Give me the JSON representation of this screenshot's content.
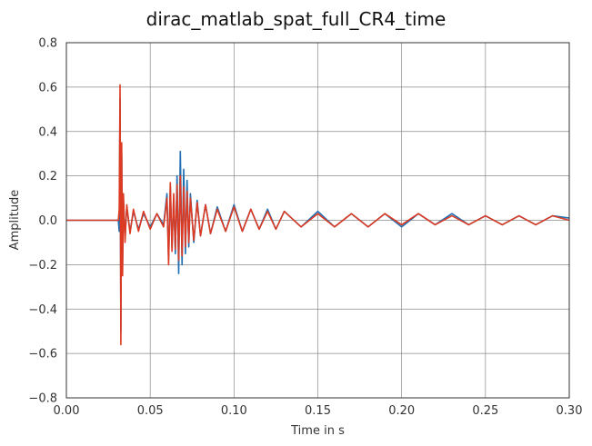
{
  "chart_data": {
    "type": "line",
    "title": "dirac_matlab_spat_full_CR4_time",
    "xlabel": "Time in s",
    "ylabel": "Amplitude",
    "xlim": [
      0.0,
      0.3
    ],
    "ylim": [
      -0.8,
      0.8
    ],
    "grid": true,
    "x_ticks": [
      0.0,
      0.05,
      0.1,
      0.15,
      0.2,
      0.25,
      0.3
    ],
    "x_tick_labels": [
      "0.00",
      "0.05",
      "0.10",
      "0.15",
      "0.20",
      "0.25",
      "0.30"
    ],
    "y_ticks": [
      -0.8,
      -0.6,
      -0.4,
      -0.2,
      0.0,
      0.2,
      0.4,
      0.6,
      0.8
    ],
    "y_tick_labels": [
      "−0.8",
      "−0.6",
      "−0.4",
      "−0.2",
      "0.0",
      "0.2",
      "0.4",
      "0.6",
      "0.8"
    ],
    "series": [
      {
        "color": "#1f6fb4",
        "x": [
          0.0,
          0.031,
          0.0315,
          0.032,
          0.0325,
          0.033,
          0.0335,
          0.034,
          0.035,
          0.036,
          0.038,
          0.04,
          0.043,
          0.046,
          0.05,
          0.054,
          0.058,
          0.06,
          0.061,
          0.062,
          0.063,
          0.064,
          0.065,
          0.066,
          0.067,
          0.068,
          0.069,
          0.07,
          0.071,
          0.072,
          0.073,
          0.074,
          0.076,
          0.078,
          0.08,
          0.083,
          0.086,
          0.09,
          0.095,
          0.1,
          0.105,
          0.11,
          0.115,
          0.12,
          0.125,
          0.13,
          0.14,
          0.15,
          0.16,
          0.17,
          0.18,
          0.19,
          0.2,
          0.21,
          0.22,
          0.23,
          0.24,
          0.25,
          0.26,
          0.27,
          0.28,
          0.29,
          0.3
        ],
        "y": [
          0.0,
          0.0,
          -0.05,
          0.55,
          -0.5,
          0.3,
          -0.2,
          0.1,
          -0.08,
          0.06,
          -0.05,
          0.04,
          -0.04,
          0.03,
          -0.03,
          0.03,
          -0.02,
          0.12,
          -0.18,
          0.15,
          -0.12,
          0.1,
          -0.15,
          0.2,
          -0.24,
          0.31,
          -0.2,
          0.23,
          -0.15,
          0.18,
          -0.12,
          0.12,
          -0.1,
          0.09,
          -0.07,
          0.07,
          -0.06,
          0.06,
          -0.05,
          0.07,
          -0.05,
          0.05,
          -0.04,
          0.05,
          -0.04,
          0.04,
          -0.03,
          0.04,
          -0.03,
          0.03,
          -0.03,
          0.03,
          -0.03,
          0.03,
          -0.02,
          0.03,
          -0.02,
          0.02,
          -0.02,
          0.02,
          -0.02,
          0.02,
          0.01
        ]
      },
      {
        "color": "#dc3a22",
        "x": [
          0.0,
          0.031,
          0.0315,
          0.032,
          0.0325,
          0.033,
          0.0335,
          0.034,
          0.035,
          0.036,
          0.038,
          0.04,
          0.043,
          0.046,
          0.05,
          0.054,
          0.058,
          0.06,
          0.061,
          0.062,
          0.063,
          0.064,
          0.065,
          0.066,
          0.067,
          0.068,
          0.069,
          0.07,
          0.071,
          0.072,
          0.073,
          0.074,
          0.076,
          0.078,
          0.08,
          0.083,
          0.086,
          0.09,
          0.095,
          0.1,
          0.105,
          0.11,
          0.115,
          0.12,
          0.125,
          0.13,
          0.14,
          0.15,
          0.16,
          0.17,
          0.18,
          0.19,
          0.2,
          0.21,
          0.22,
          0.23,
          0.24,
          0.25,
          0.26,
          0.27,
          0.28,
          0.29,
          0.3
        ],
        "y": [
          0.0,
          0.0,
          0.05,
          0.61,
          -0.56,
          0.35,
          -0.25,
          0.12,
          -0.1,
          0.07,
          -0.06,
          0.05,
          -0.05,
          0.04,
          -0.04,
          0.03,
          -0.03,
          0.1,
          -0.2,
          0.17,
          -0.14,
          0.12,
          -0.13,
          0.16,
          -0.18,
          0.2,
          -0.16,
          0.15,
          -0.12,
          0.13,
          -0.1,
          0.1,
          -0.09,
          0.08,
          -0.07,
          0.07,
          -0.06,
          0.05,
          -0.05,
          0.06,
          -0.05,
          0.05,
          -0.04,
          0.04,
          -0.04,
          0.04,
          -0.03,
          0.03,
          -0.03,
          0.03,
          -0.03,
          0.03,
          -0.02,
          0.03,
          -0.02,
          0.02,
          -0.02,
          0.02,
          -0.02,
          0.02,
          -0.02,
          0.02,
          0.0
        ]
      }
    ]
  }
}
